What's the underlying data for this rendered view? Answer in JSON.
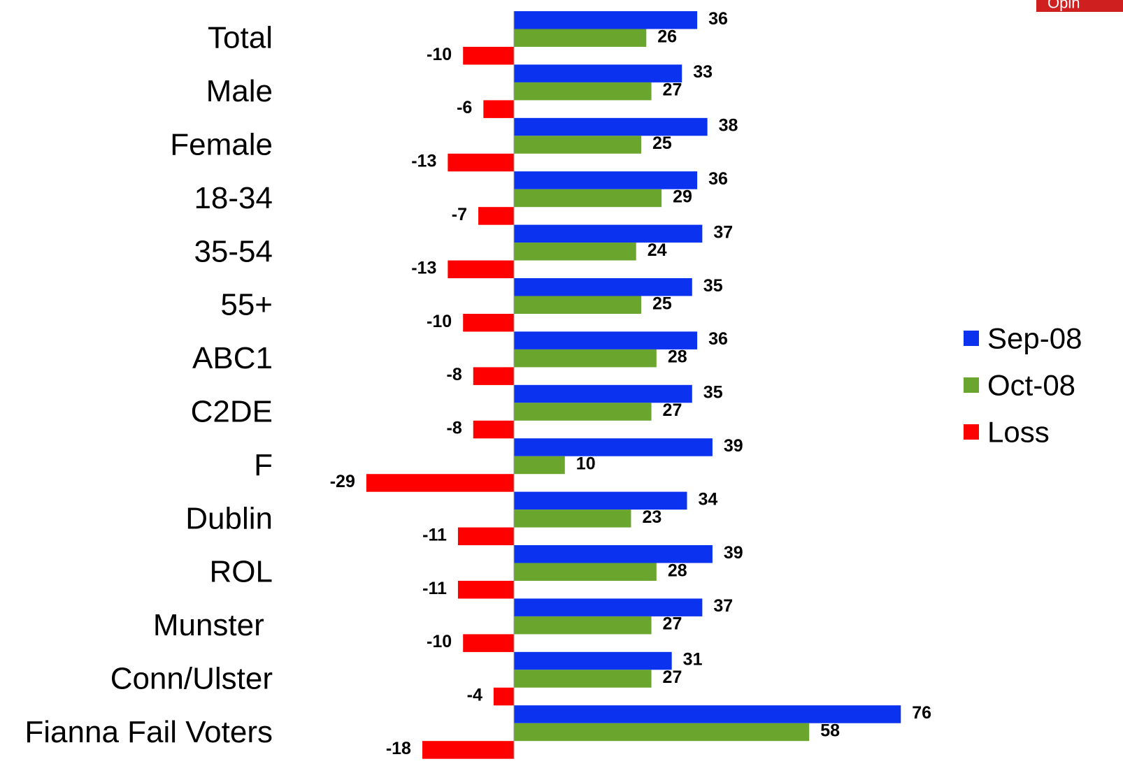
{
  "badge": "Opin",
  "chart_data": {
    "type": "hbar",
    "categories": [
      "Total",
      "Male",
      "Female",
      "18-34",
      "35-54",
      "55+",
      "ABC1",
      "C2DE",
      "F",
      "Dublin",
      "ROL",
      "Munster ",
      "Conn/Ulster",
      "Fianna Fail Voters"
    ],
    "series": [
      {
        "name": "Sep-08",
        "color": "#0b32ee",
        "values": [
          36,
          33,
          38,
          36,
          37,
          35,
          36,
          35,
          39,
          34,
          39,
          37,
          31,
          76
        ]
      },
      {
        "name": "Oct-08",
        "color": "#6aa62e",
        "values": [
          26,
          27,
          25,
          29,
          24,
          25,
          28,
          27,
          10,
          23,
          28,
          27,
          27,
          58
        ]
      },
      {
        "name": "Loss",
        "color": "#ff0000",
        "values": [
          -10,
          -6,
          -13,
          -7,
          -13,
          -10,
          -8,
          -8,
          -29,
          -11,
          -11,
          -10,
          -4,
          -18
        ]
      }
    ],
    "legend": "right"
  }
}
